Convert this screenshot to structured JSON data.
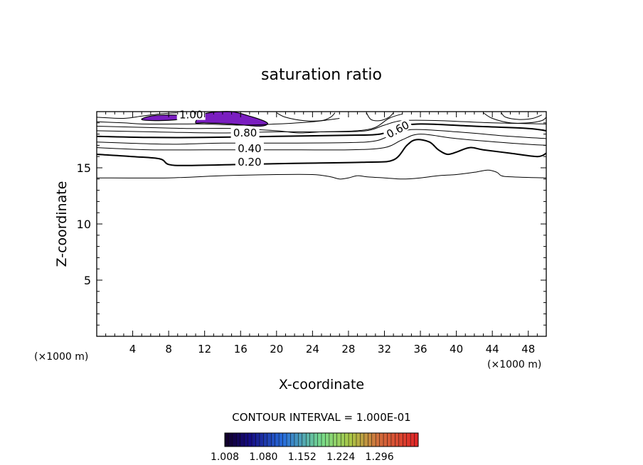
{
  "chart_data": {
    "type": "contour",
    "title": "saturation ratio",
    "xlabel": "X-coordinate",
    "ylabel": "Z-coordinate",
    "x_unit_left": "(×1000 m)",
    "x_unit_right": "(×1000 m)",
    "xlim": [
      0,
      50
    ],
    "ylim": [
      0,
      20
    ],
    "x_ticks": [
      4,
      8,
      12,
      16,
      20,
      24,
      28,
      32,
      36,
      40,
      44,
      48
    ],
    "y_ticks": [
      5,
      10,
      15
    ],
    "contour_interval_label": "CONTOUR INTERVAL = 1.000E-01",
    "contour_labels": [
      {
        "text": "0.20",
        "x": 17,
        "z": 15.5
      },
      {
        "text": "0.40",
        "x": 17,
        "z": 16.7
      },
      {
        "text": "0.60",
        "x": 33.5,
        "z": 18.4
      },
      {
        "text": "0.80",
        "x": 16.5,
        "z": 18.1
      },
      {
        "text": "1.00",
        "x": 10.5,
        "z": 19.7
      }
    ],
    "contours": [
      {
        "level": 0.1,
        "points": [
          [
            0,
            14.1
          ],
          [
            8,
            14.1
          ],
          [
            14,
            14.3
          ],
          [
            20,
            14.4
          ],
          [
            24,
            14.4
          ],
          [
            26,
            14.2
          ],
          [
            27,
            14.0
          ],
          [
            28,
            14.1
          ],
          [
            29,
            14.3
          ],
          [
            30,
            14.2
          ],
          [
            32,
            14.1
          ],
          [
            34,
            14.0
          ],
          [
            36,
            14.1
          ],
          [
            38,
            14.3
          ],
          [
            40,
            14.4
          ],
          [
            42,
            14.6
          ],
          [
            43.5,
            14.8
          ],
          [
            44.5,
            14.6
          ],
          [
            45,
            14.3
          ],
          [
            46,
            14.2
          ],
          [
            50,
            14.1
          ]
        ]
      },
      {
        "level": 0.2,
        "points": [
          [
            0,
            16.2
          ],
          [
            4,
            16.0
          ],
          [
            7,
            15.8
          ],
          [
            8,
            15.3
          ],
          [
            10,
            15.2
          ],
          [
            16,
            15.3
          ],
          [
            22,
            15.4
          ],
          [
            30,
            15.5
          ],
          [
            33,
            15.7
          ],
          [
            34.5,
            17.0
          ],
          [
            35.5,
            17.5
          ],
          [
            37,
            17.3
          ],
          [
            38,
            16.6
          ],
          [
            39,
            16.2
          ],
          [
            40,
            16.4
          ],
          [
            41.5,
            16.8
          ],
          [
            43,
            16.6
          ],
          [
            46,
            16.3
          ],
          [
            49,
            16.0
          ],
          [
            50,
            16.3
          ]
        ]
      },
      {
        "level": 0.4,
        "points": [
          [
            0,
            16.8
          ],
          [
            6,
            16.6
          ],
          [
            12,
            16.6
          ],
          [
            20,
            16.6
          ],
          [
            28,
            16.6
          ],
          [
            32,
            16.8
          ],
          [
            34,
            17.5
          ],
          [
            36,
            18.0
          ],
          [
            40,
            17.6
          ],
          [
            46,
            17.2
          ],
          [
            50,
            17.0
          ]
        ]
      },
      {
        "level": 0.5,
        "points": [
          [
            0,
            17.3
          ],
          [
            8,
            17.1
          ],
          [
            14,
            17.2
          ],
          [
            22,
            17.2
          ],
          [
            30,
            17.3
          ],
          [
            32.5,
            17.8
          ],
          [
            35,
            18.4
          ],
          [
            40,
            18.2
          ],
          [
            46,
            17.8
          ],
          [
            50,
            17.6
          ]
        ]
      },
      {
        "level": 0.6,
        "points": [
          [
            0,
            17.8
          ],
          [
            6,
            17.7
          ],
          [
            12,
            17.7
          ],
          [
            20,
            17.8
          ],
          [
            28,
            17.9
          ],
          [
            31.5,
            18.0
          ],
          [
            33.5,
            18.6
          ],
          [
            36,
            18.9
          ],
          [
            42,
            18.7
          ],
          [
            48,
            18.5
          ],
          [
            50,
            18.3
          ]
        ]
      },
      {
        "level": 0.7,
        "points": [
          [
            0,
            18.3
          ],
          [
            6,
            18.2
          ],
          [
            14,
            18.1
          ],
          [
            20,
            18.2
          ],
          [
            26,
            18.2
          ],
          [
            30,
            18.3
          ],
          [
            32,
            18.8
          ],
          [
            34,
            19.2
          ],
          [
            38,
            19.2
          ],
          [
            44,
            19.0
          ],
          [
            50,
            18.9
          ]
        ]
      },
      {
        "level": 0.8,
        "points": [
          [
            0,
            18.7
          ],
          [
            5,
            18.6
          ],
          [
            10,
            18.5
          ],
          [
            15,
            18.5
          ],
          [
            20,
            18.3
          ],
          [
            22.5,
            18.1
          ],
          [
            25,
            18.2
          ],
          [
            29,
            18.3
          ],
          [
            31,
            18.6
          ],
          [
            32.5,
            19.4
          ],
          [
            34,
            19.8
          ]
        ]
      },
      {
        "level": 0.9,
        "points": [
          [
            0,
            19.1
          ],
          [
            3,
            19.0
          ],
          [
            5,
            18.9
          ],
          [
            9,
            18.9
          ],
          [
            12,
            18.9
          ],
          [
            16,
            18.8
          ],
          [
            20,
            18.9
          ],
          [
            24,
            19.1
          ],
          [
            27,
            19.4
          ]
        ]
      },
      {
        "level": 0.9,
        "points": [
          [
            0,
            19.5
          ],
          [
            3,
            19.4
          ],
          [
            5,
            19.6
          ],
          [
            7,
            19.8
          ],
          [
            9,
            19.9
          ]
        ]
      },
      {
        "level": 0.9,
        "points": [
          [
            20,
            19.9
          ],
          [
            21,
            19.5
          ],
          [
            23,
            19.2
          ],
          [
            25,
            19.2
          ],
          [
            26,
            19.5
          ],
          [
            26.5,
            19.9
          ]
        ]
      },
      {
        "level": 0.9,
        "points": [
          [
            30,
            19.9
          ],
          [
            30.5,
            19.3
          ],
          [
            31.5,
            19.2
          ],
          [
            32.5,
            19.5
          ],
          [
            33,
            19.9
          ]
        ]
      },
      {
        "level": 0.9,
        "points": [
          [
            43,
            19.9
          ],
          [
            44,
            19.4
          ],
          [
            46,
            19.0
          ],
          [
            48,
            19.0
          ],
          [
            49.5,
            19.2
          ],
          [
            50,
            19.5
          ]
        ]
      },
      {
        "level": 0.9,
        "points": [
          [
            45,
            19.9
          ],
          [
            45.5,
            19.5
          ],
          [
            47,
            19.3
          ],
          [
            48.5,
            19.4
          ],
          [
            49.5,
            19.7
          ]
        ]
      }
    ],
    "shaded_regions": [
      {
        "value_range": [
          1.0,
          1.08
        ],
        "points": [
          [
            5,
            19.3
          ],
          [
            6,
            19.6
          ],
          [
            8,
            19.7
          ],
          [
            10,
            19.6
          ],
          [
            9,
            19.3
          ],
          [
            6.5,
            19.2
          ]
        ]
      },
      {
        "value_range": [
          1.0,
          1.08
        ],
        "points": [
          [
            11,
            19.0
          ],
          [
            11.5,
            19.6
          ],
          [
            12.5,
            19.9
          ],
          [
            15,
            20.0
          ],
          [
            17,
            19.6
          ],
          [
            18.5,
            19.2
          ],
          [
            19,
            18.9
          ],
          [
            18,
            18.7
          ],
          [
            15,
            18.9
          ],
          [
            12,
            19.0
          ]
        ]
      }
    ],
    "colorbar": {
      "tick_labels": [
        "1.008",
        "1.080",
        "1.152",
        "1.224",
        "1.296"
      ],
      "min": 1.008,
      "max": 1.368
    }
  }
}
